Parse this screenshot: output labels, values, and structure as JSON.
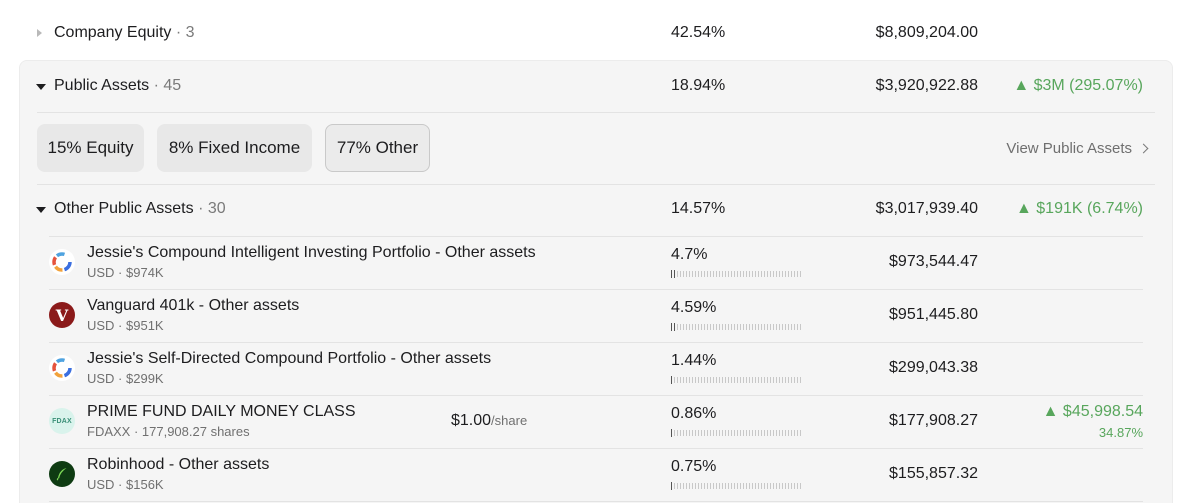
{
  "company_equity": {
    "label": "Company Equity",
    "count": "· 3",
    "percent": "42.54%",
    "amount": "$8,809,204.00"
  },
  "public_assets": {
    "label": "Public Assets",
    "count": "· 45",
    "percent": "18.94%",
    "amount": "$3,920,922.88",
    "gain": "▲ $3M (295.07%)",
    "chips": [
      {
        "label": "15% Equity"
      },
      {
        "label": "8% Fixed Income"
      },
      {
        "label": "77% Other"
      }
    ],
    "view_link": "View Public Assets"
  },
  "other_public_assets": {
    "label": "Other Public Assets",
    "count": "· 30",
    "percent": "14.57%",
    "amount": "$3,017,939.40",
    "gain": "▲ $191K (6.74%)"
  },
  "assets": [
    {
      "name": "Jessie's Compound Intelligent Investing Portfolio - Other assets",
      "sub": "USD · $974K",
      "percent": "4.7%",
      "amount": "$973,544.47",
      "logo": "compound-logo",
      "allocation_fraction": 0.047
    },
    {
      "name": "Vanguard 401k - Other assets",
      "sub": "USD · $951K",
      "percent": "4.59%",
      "amount": "$951,445.80",
      "logo": "vanguard-logo",
      "logo_text": "V",
      "allocation_fraction": 0.0459
    },
    {
      "name": "Jessie's Self-Directed Compound Portfolio - Other assets",
      "sub": "USD · $299K",
      "percent": "1.44%",
      "amount": "$299,043.38",
      "logo": "compound-logo",
      "allocation_fraction": 0.0144
    },
    {
      "name": "PRIME FUND DAILY MONEY CLASS",
      "sub": "FDAXX · 177,908.27 shares",
      "price": "$1.00",
      "price_unit": "/share",
      "percent": "0.86%",
      "amount": "$177,908.27",
      "gain": "▲ $45,998.54",
      "gain_pct": "34.87%",
      "logo": "fdax-logo",
      "logo_text": "FDAX",
      "allocation_fraction": 0.0086
    },
    {
      "name": "Robinhood - Other assets",
      "sub": "USD · $156K",
      "percent": "0.75%",
      "amount": "$155,857.32",
      "logo": "robinhood-feather-logo",
      "allocation_fraction": 0.0075
    }
  ],
  "colors": {
    "gain_green": "#58a65c",
    "panel_bg": "#f5f5f5",
    "vanguard_red": "#8b1a1a",
    "robinhood_green": "#0e3b12"
  }
}
